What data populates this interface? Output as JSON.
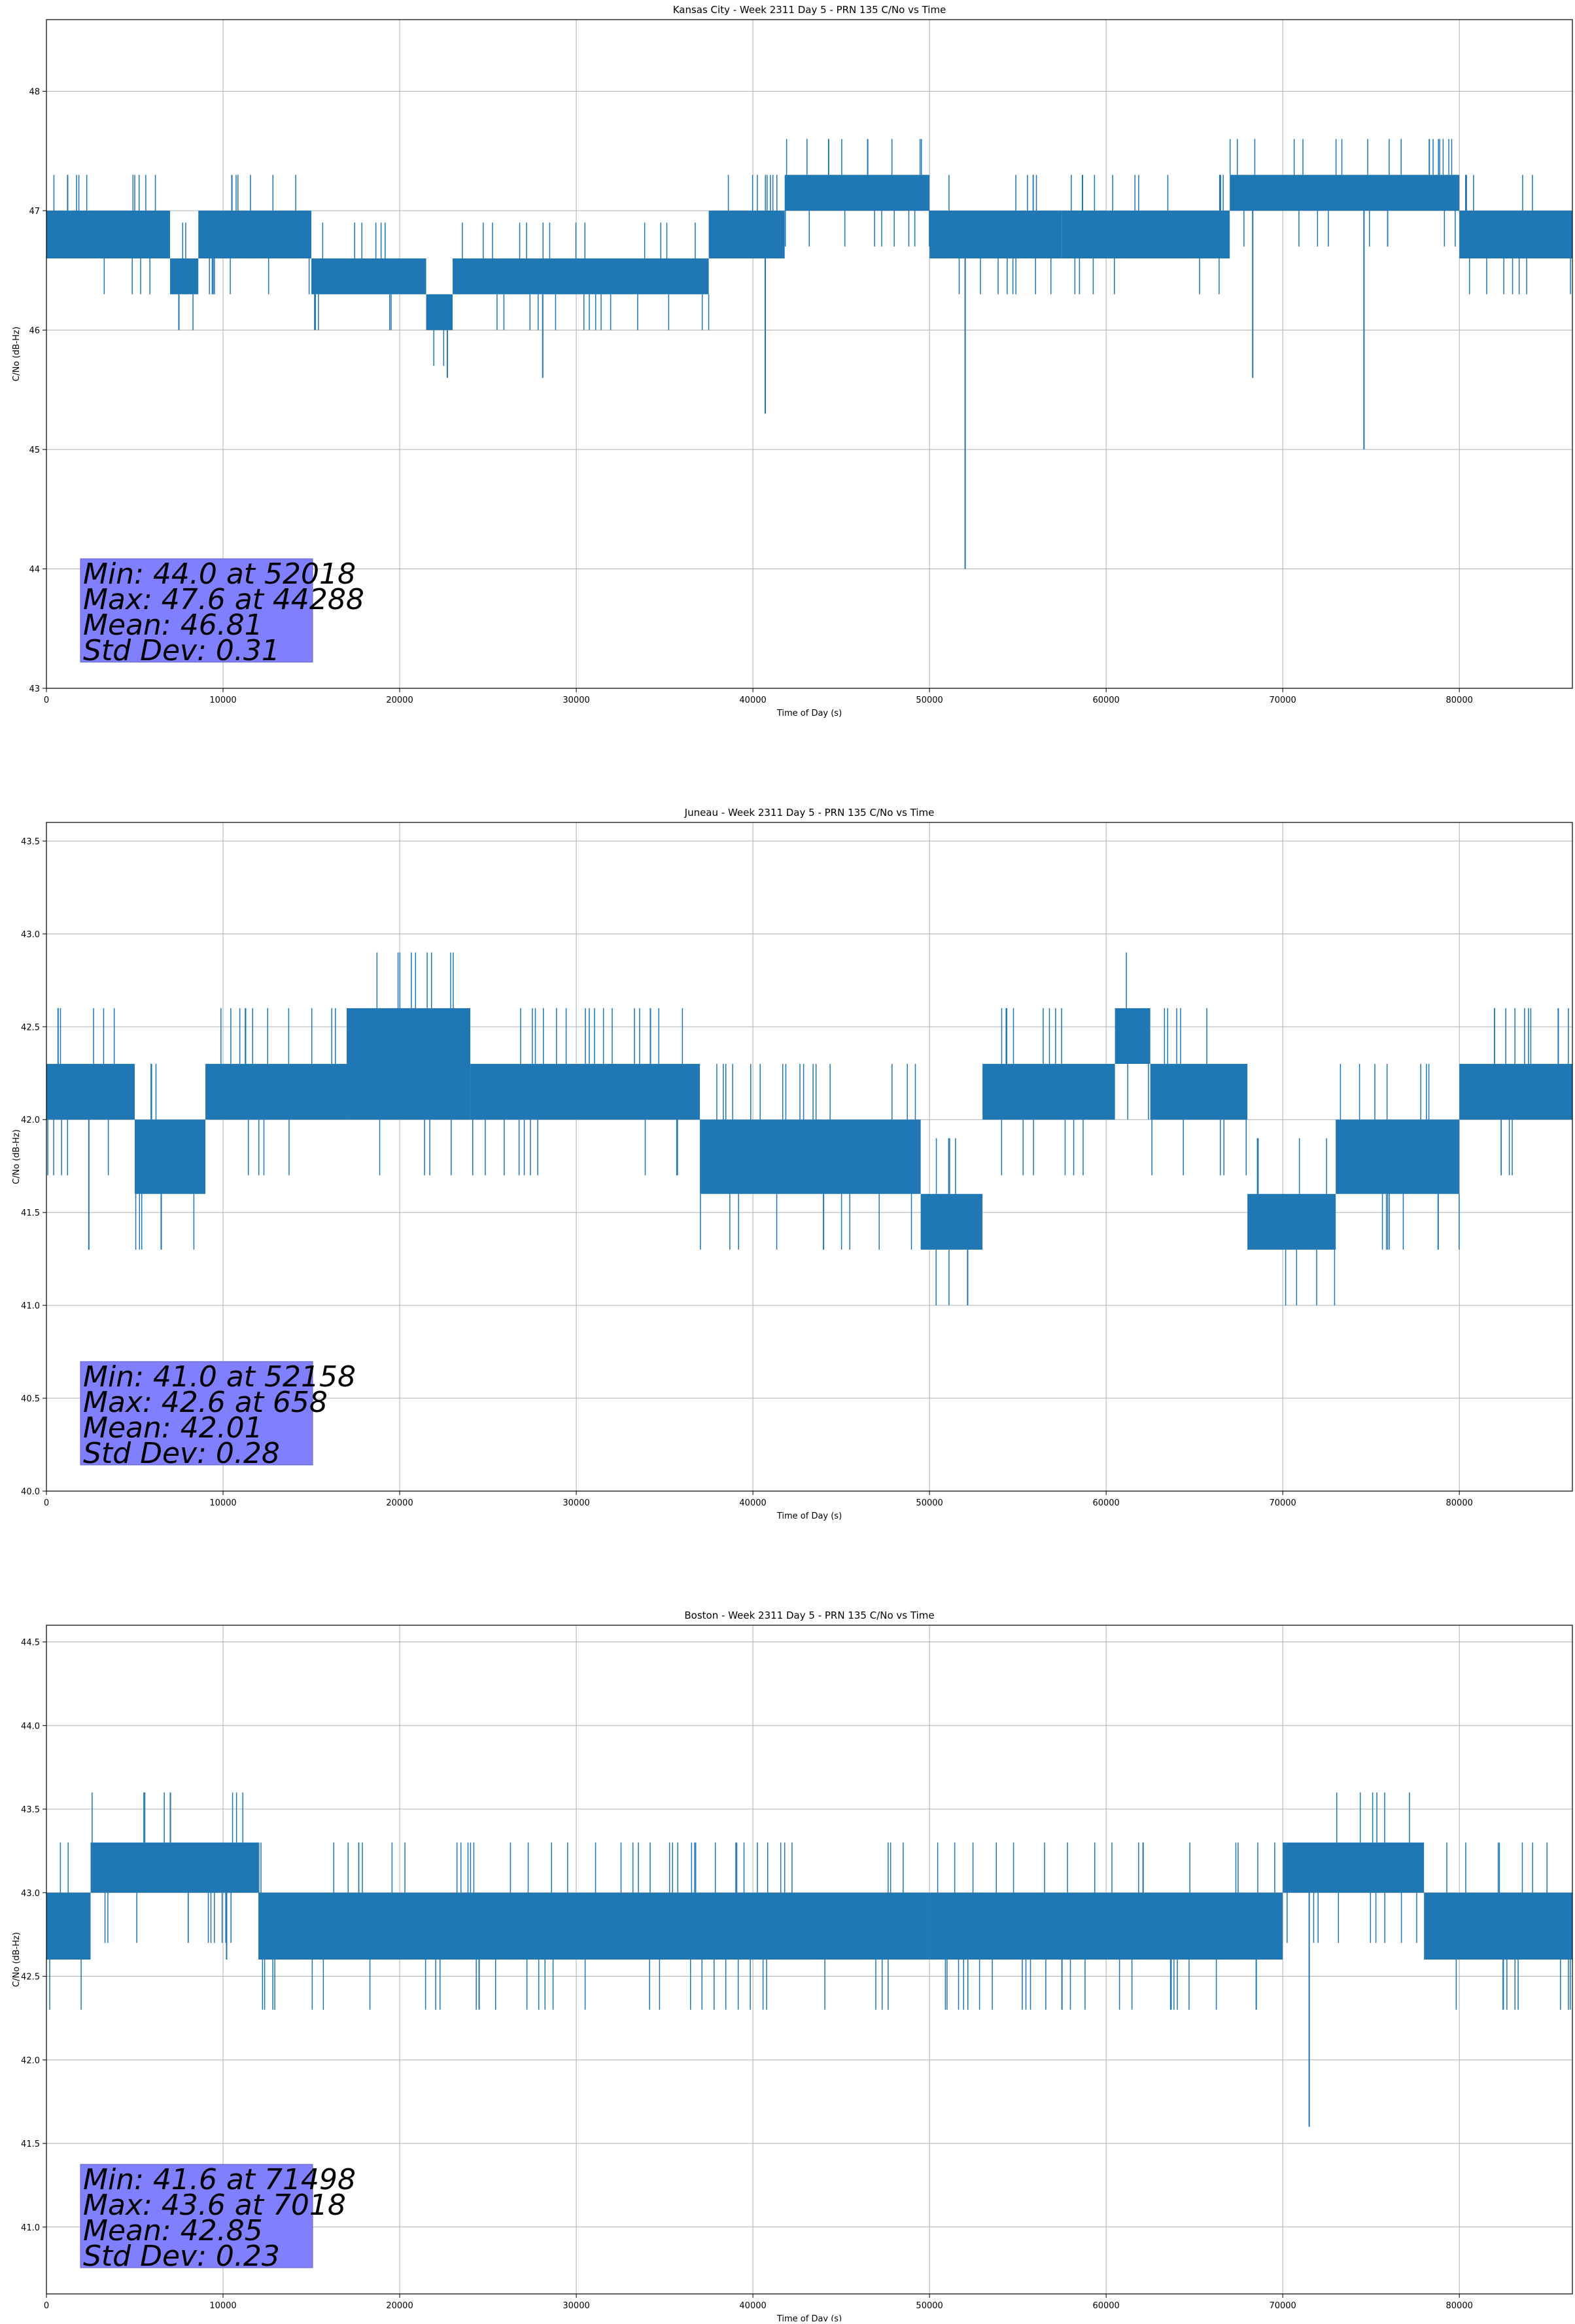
{
  "figure": {
    "background": "#ffffff",
    "line_color": "#1f77b4",
    "stats_box_color": "#8080ff"
  },
  "chart_data": [
    {
      "type": "line",
      "title": "Kansas City - Week 2311 Day 5 - PRN 135 C/No vs Time",
      "xlabel": "Time of Day (s)",
      "ylabel": "C/No (dB-Hz)",
      "xlim": [
        0,
        86400
      ],
      "ylim": [
        43.0,
        48.6
      ],
      "xticks": [
        0,
        10000,
        20000,
        30000,
        40000,
        50000,
        60000,
        70000,
        80000
      ],
      "yticks": [
        43,
        44,
        45,
        46,
        47,
        48
      ],
      "ytick_labels": [
        "43",
        "44",
        "45",
        "46",
        "47",
        "48"
      ],
      "grid": true,
      "series": [
        {
          "band_segments": [
            {
              "x0": 0,
              "x1": 7000,
              "lo": 46.6,
              "hi": 47.0
            },
            {
              "x0": 7000,
              "x1": 8600,
              "lo": 46.3,
              "hi": 46.6
            },
            {
              "x0": 8600,
              "x1": 15000,
              "lo": 46.6,
              "hi": 47.0
            },
            {
              "x0": 15000,
              "x1": 21500,
              "lo": 46.3,
              "hi": 46.6
            },
            {
              "x0": 21500,
              "x1": 23000,
              "lo": 46.0,
              "hi": 46.3
            },
            {
              "x0": 23000,
              "x1": 30000,
              "lo": 46.3,
              "hi": 46.6
            },
            {
              "x0": 30000,
              "x1": 37500,
              "lo": 46.3,
              "hi": 46.6
            },
            {
              "x0": 37500,
              "x1": 41800,
              "lo": 46.6,
              "hi": 47.0
            },
            {
              "x0": 41800,
              "x1": 50000,
              "lo": 47.0,
              "hi": 47.3
            },
            {
              "x0": 50000,
              "x1": 57500,
              "lo": 46.6,
              "hi": 47.0
            },
            {
              "x0": 57500,
              "x1": 67000,
              "lo": 46.6,
              "hi": 47.0
            },
            {
              "x0": 67000,
              "x1": 80000,
              "lo": 47.0,
              "hi": 47.3
            },
            {
              "x0": 80000,
              "x1": 86400,
              "lo": 46.6,
              "hi": 47.0
            }
          ],
          "spikes": [
            {
              "x": 52018,
              "y": 44.0
            },
            {
              "x": 40700,
              "y": 45.3
            },
            {
              "x": 74600,
              "y": 45.0
            },
            {
              "x": 68300,
              "y": 45.6
            },
            {
              "x": 22700,
              "y": 45.6
            },
            {
              "x": 28100,
              "y": 45.6
            },
            {
              "x": 7500,
              "y": 46.0
            },
            {
              "x": 44288,
              "y": 47.6
            },
            {
              "x": 46500,
              "y": 47.6
            },
            {
              "x": 78300,
              "y": 47.6
            },
            {
              "x": 10500,
              "y": 47.3
            },
            {
              "x": 1200,
              "y": 47.3
            }
          ]
        }
      ],
      "stats": [
        "Min: 44.0 at 52018",
        "Max: 47.6 at 44288",
        "Mean: 46.81",
        "Std Dev: 0.31"
      ]
    },
    {
      "type": "line",
      "title": "Juneau - Week 2311 Day 5 - PRN 135 C/No vs Time",
      "xlabel": "Time of Day (s)",
      "ylabel": "C/No (dB-Hz)",
      "xlim": [
        0,
        86400
      ],
      "ylim": [
        40.0,
        43.6
      ],
      "xticks": [
        0,
        10000,
        20000,
        30000,
        40000,
        50000,
        60000,
        70000,
        80000
      ],
      "yticks": [
        40.0,
        40.5,
        41.0,
        41.5,
        42.0,
        42.5,
        43.0,
        43.5
      ],
      "ytick_labels": [
        "40.0",
        "40.5",
        "41.0",
        "41.5",
        "42.0",
        "42.5",
        "43.0",
        "43.5"
      ],
      "grid": true,
      "series": [
        {
          "band_segments": [
            {
              "x0": 0,
              "x1": 5000,
              "lo": 42.0,
              "hi": 42.3
            },
            {
              "x0": 5000,
              "x1": 9000,
              "lo": 41.6,
              "hi": 42.0
            },
            {
              "x0": 9000,
              "x1": 17000,
              "lo": 42.0,
              "hi": 42.3
            },
            {
              "x0": 17000,
              "x1": 24000,
              "lo": 42.0,
              "hi": 42.6
            },
            {
              "x0": 24000,
              "x1": 37000,
              "lo": 42.0,
              "hi": 42.3
            },
            {
              "x0": 37000,
              "x1": 49500,
              "lo": 41.6,
              "hi": 42.0
            },
            {
              "x0": 49500,
              "x1": 53000,
              "lo": 41.3,
              "hi": 41.6
            },
            {
              "x0": 53000,
              "x1": 60500,
              "lo": 42.0,
              "hi": 42.3
            },
            {
              "x0": 60500,
              "x1": 62500,
              "lo": 42.3,
              "hi": 42.6
            },
            {
              "x0": 62500,
              "x1": 68000,
              "lo": 42.0,
              "hi": 42.3
            },
            {
              "x0": 68000,
              "x1": 73000,
              "lo": 41.3,
              "hi": 41.6
            },
            {
              "x0": 73000,
              "x1": 80000,
              "lo": 41.6,
              "hi": 42.0
            },
            {
              "x0": 80000,
              "x1": 86400,
              "lo": 42.0,
              "hi": 42.3
            }
          ],
          "spikes": [
            {
              "x": 52158,
              "y": 41.0
            },
            {
              "x": 658,
              "y": 42.6
            },
            {
              "x": 2400,
              "y": 41.3
            },
            {
              "x": 6500,
              "y": 41.3
            },
            {
              "x": 34200,
              "y": 42.6
            },
            {
              "x": 85600,
              "y": 42.6
            },
            {
              "x": 78800,
              "y": 41.3
            },
            {
              "x": 44000,
              "y": 41.3
            }
          ]
        }
      ],
      "stats": [
        "Min: 41.0 at 52158",
        "Max: 42.6 at 658",
        "Mean: 42.01",
        "Std Dev: 0.28"
      ]
    },
    {
      "type": "line",
      "title": "Boston - Week 2311 Day 5 - PRN 135 C/No vs Time",
      "xlabel": "Time of Day (s)",
      "ylabel": "C/No (dB-Hz)",
      "xlim": [
        0,
        86400
      ],
      "ylim": [
        40.6,
        44.6
      ],
      "xticks": [
        0,
        10000,
        20000,
        30000,
        40000,
        50000,
        60000,
        70000,
        80000
      ],
      "yticks": [
        41.0,
        41.5,
        42.0,
        42.5,
        43.0,
        43.5,
        44.0,
        44.5
      ],
      "ytick_labels": [
        "41.0",
        "41.5",
        "42.0",
        "42.5",
        "43.0",
        "43.5",
        "44.0",
        "44.5"
      ],
      "grid": true,
      "series": [
        {
          "band_segments": [
            {
              "x0": 0,
              "x1": 2500,
              "lo": 42.6,
              "hi": 43.0
            },
            {
              "x0": 2500,
              "x1": 12000,
              "lo": 43.0,
              "hi": 43.3
            },
            {
              "x0": 12000,
              "x1": 30000,
              "lo": 42.6,
              "hi": 43.0
            },
            {
              "x0": 30000,
              "x1": 50000,
              "lo": 42.6,
              "hi": 43.0
            },
            {
              "x0": 50000,
              "x1": 70000,
              "lo": 42.6,
              "hi": 43.0
            },
            {
              "x0": 70000,
              "x1": 78000,
              "lo": 43.0,
              "hi": 43.3
            },
            {
              "x0": 78000,
              "x1": 86400,
              "lo": 42.6,
              "hi": 43.0
            }
          ],
          "spikes": [
            {
              "x": 71498,
              "y": 41.6
            },
            {
              "x": 7018,
              "y": 43.6
            },
            {
              "x": 24500,
              "y": 42.3
            },
            {
              "x": 57500,
              "y": 42.3
            },
            {
              "x": 10200,
              "y": 42.6
            },
            {
              "x": 68500,
              "y": 42.3
            }
          ]
        }
      ],
      "stats": [
        "Min: 41.6 at 71498",
        "Max: 43.6 at 7018",
        "Mean: 42.85",
        "Std Dev: 0.23"
      ]
    }
  ]
}
